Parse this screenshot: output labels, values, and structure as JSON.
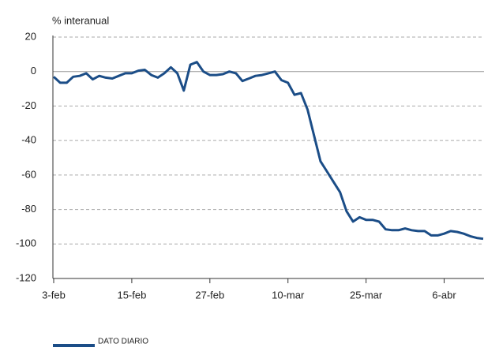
{
  "chart_data": {
    "type": "line",
    "y_label": "% interanual",
    "categories": [
      "3-feb",
      null,
      null,
      null,
      null,
      null,
      null,
      null,
      null,
      null,
      null,
      null,
      "15-feb",
      null,
      null,
      null,
      null,
      null,
      null,
      null,
      null,
      null,
      null,
      null,
      "27-feb",
      null,
      null,
      null,
      null,
      null,
      null,
      null,
      null,
      null,
      null,
      null,
      "10-mar",
      null,
      null,
      null,
      null,
      null,
      null,
      null,
      null,
      null,
      null,
      null,
      "25-mar",
      null,
      null,
      null,
      null,
      null,
      null,
      null,
      null,
      null,
      null,
      null,
      "6-abr",
      null,
      null,
      null,
      null,
      null,
      null
    ],
    "series": [
      {
        "name": "DATO DIARIO",
        "color": "#1b4d87",
        "values": [
          -3,
          -6.5,
          -6.5,
          -3,
          -2.5,
          -1,
          -4.5,
          -2.5,
          -3.5,
          -4,
          -2.5,
          -1,
          -1,
          0.5,
          1,
          -2,
          -3.5,
          -1,
          2.5,
          -1,
          -11,
          4,
          5.5,
          0,
          -2,
          -2,
          -1.5,
          0,
          -1,
          -5.5,
          -4,
          -2.5,
          -2,
          -1,
          0,
          -5,
          -6.5,
          -13.5,
          -12.5,
          -22,
          -37,
          -52,
          -58,
          -64,
          -70,
          -81,
          -87,
          -84.5,
          -86,
          -86,
          -87,
          -91.5,
          -92,
          -92,
          -91,
          -92,
          -92.5,
          -92.5,
          -95,
          -95,
          -94,
          -92.5,
          -93,
          -94,
          -95.5,
          -96.5,
          -97
        ]
      }
    ],
    "ylim": [
      -120,
      20
    ],
    "yticks": [
      20,
      0,
      -20,
      -40,
      -60,
      -80,
      -100,
      -120
    ],
    "grid": true
  }
}
